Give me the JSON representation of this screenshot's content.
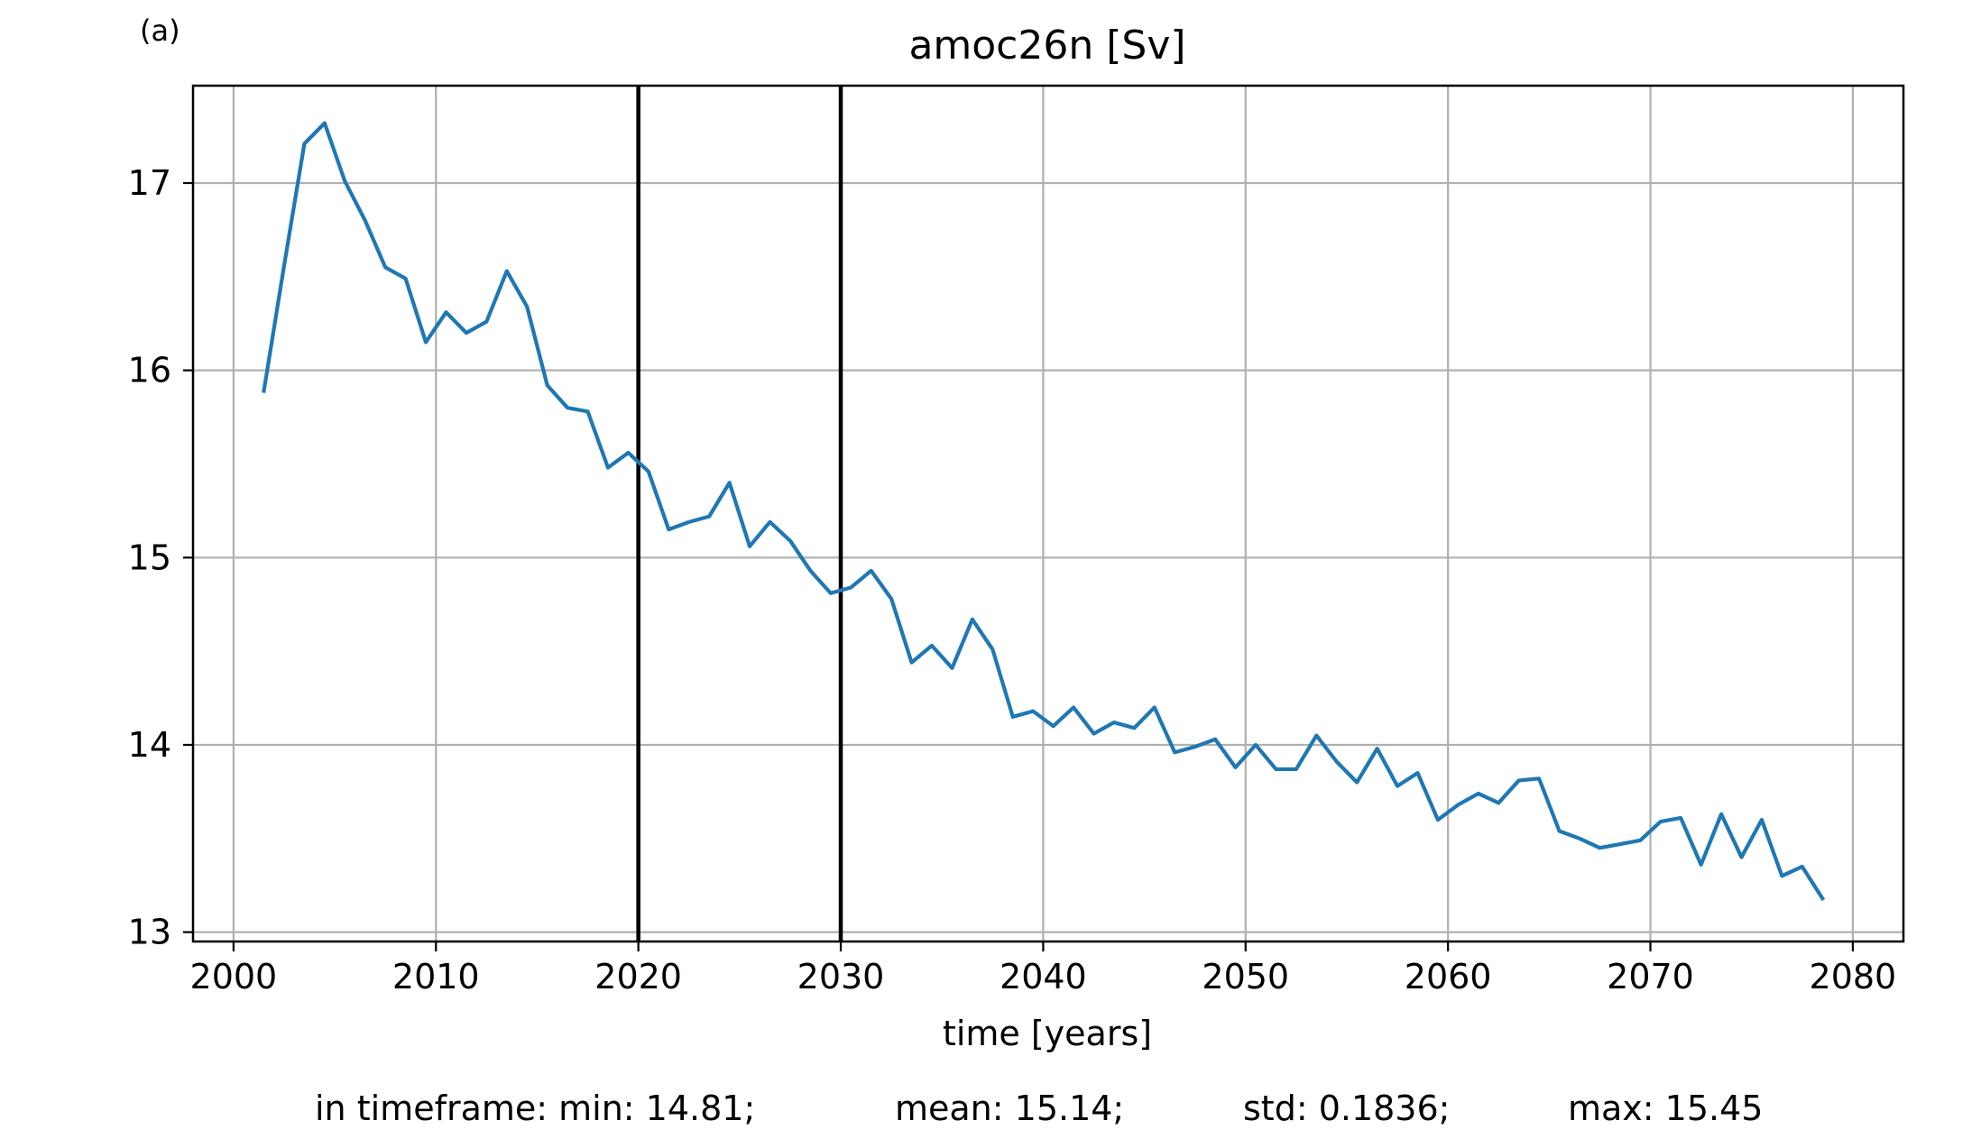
{
  "panel_label": "(a)",
  "colors": {
    "series": "#1f77b4",
    "grid": "#b0b0b0",
    "marker_lines": "#000000"
  },
  "stats_line": {
    "min": "in timeframe: min: 14.81;",
    "mean": "mean: 15.14;",
    "std": "std: 0.1836;",
    "max": "max: 15.45"
  },
  "chart_data": {
    "type": "line",
    "title": "amoc26n [Sv]",
    "xlabel": "time [years]",
    "ylabel": "",
    "xlim": [
      1998,
      2082.5
    ],
    "ylim": [
      12.95,
      17.52
    ],
    "xticks": [
      2000,
      2010,
      2020,
      2030,
      2040,
      2050,
      2060,
      2070,
      2080
    ],
    "yticks": [
      13,
      14,
      15,
      16,
      17
    ],
    "grid": true,
    "vertical_markers": [
      2020,
      2030
    ],
    "series": [
      {
        "x": [
          2001.5,
          2002.5,
          2003.5,
          2004.5,
          2005.5,
          2006.5,
          2007.5,
          2008.5,
          2009.5,
          2010.5,
          2011.5,
          2012.5,
          2013.5,
          2014.5,
          2015.5,
          2016.5,
          2017.5,
          2018.5,
          2019.5,
          2020.5,
          2021.5,
          2022.5,
          2023.5,
          2024.5,
          2025.5,
          2026.5,
          2027.5,
          2028.5,
          2029.5,
          2030.5,
          2031.5,
          2032.5,
          2033.5,
          2034.5,
          2035.5,
          2036.5,
          2037.5,
          2038.5,
          2039.5,
          2040.5,
          2041.5,
          2042.5,
          2043.5,
          2044.5,
          2045.5,
          2046.5,
          2047.5,
          2048.5,
          2049.5,
          2050.5,
          2051.5,
          2052.5,
          2053.5,
          2054.5,
          2055.5,
          2056.5,
          2057.5,
          2058.5,
          2059.5,
          2060.5,
          2061.5,
          2062.5,
          2063.5,
          2064.5,
          2065.5,
          2066.5,
          2067.5,
          2068.5,
          2069.5,
          2070.5,
          2071.5,
          2072.5,
          2073.5,
          2074.5,
          2075.5,
          2076.5,
          2077.5,
          2078.5
        ],
        "values": [
          15.89,
          16.56,
          17.21,
          17.32,
          17.01,
          16.8,
          16.55,
          16.49,
          16.15,
          16.31,
          16.2,
          16.26,
          16.53,
          16.34,
          15.92,
          15.8,
          15.78,
          15.48,
          15.56,
          15.46,
          15.15,
          15.19,
          15.22,
          15.4,
          15.06,
          15.19,
          15.09,
          14.93,
          14.81,
          14.84,
          14.93,
          14.78,
          14.44,
          14.53,
          14.41,
          14.67,
          14.51,
          14.15,
          14.18,
          14.1,
          14.2,
          14.06,
          14.12,
          14.09,
          14.2,
          13.96,
          13.99,
          14.03,
          13.88,
          14.0,
          13.87,
          13.87,
          14.05,
          13.91,
          13.8,
          13.98,
          13.78,
          13.85,
          13.6,
          13.68,
          13.74,
          13.69,
          13.81,
          13.82,
          13.54,
          13.5,
          13.45,
          13.47,
          13.49,
          13.59,
          13.61,
          13.36,
          13.63,
          13.4,
          13.6,
          13.3,
          13.35,
          13.18
        ]
      }
    ]
  }
}
